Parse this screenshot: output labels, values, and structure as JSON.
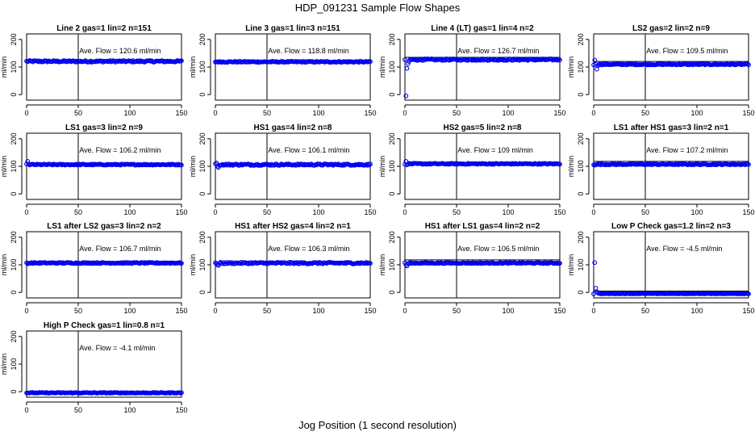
{
  "figure": {
    "title": "HDP_091231  Sample Flow Shapes",
    "xlabel": "Jog Position (1 second resolution)",
    "ylabel": "ml/min",
    "series_color": "#0000ee"
  },
  "chart_data": [
    {
      "type": "scatter",
      "title": "Line 2 gas=1 lin=2 n=151",
      "annotation": "Ave. Flow =  120.6  ml/min",
      "mean": 120.6,
      "first_points": [],
      "noise": 3,
      "xlim": [
        0,
        150
      ],
      "ylim": [
        -20,
        220
      ],
      "xticks": [
        0,
        50,
        100,
        150
      ],
      "yticks": [
        0,
        100,
        200
      ],
      "vline_x": 50,
      "hline_y": null
    },
    {
      "type": "scatter",
      "title": "Line 3 gas=1 lin=3 n=151",
      "annotation": "Ave. Flow =  118.8  ml/min",
      "mean": 118.8,
      "first_points": [],
      "noise": 2,
      "xlim": [
        0,
        150
      ],
      "ylim": [
        -20,
        220
      ],
      "xticks": [
        0,
        50,
        100,
        150
      ],
      "yticks": [
        0,
        100,
        200
      ],
      "vline_x": 50,
      "hline_y": null
    },
    {
      "type": "scatter",
      "title": "Line 4 (LT) gas=1 lin=4 n=2",
      "annotation": "Ave. Flow =  126.7  ml/min",
      "mean": 126.7,
      "first_points": [
        [
          1,
          -5
        ],
        [
          2,
          95
        ],
        [
          3,
          112
        ],
        [
          4,
          120
        ]
      ],
      "noise": 3,
      "xlim": [
        0,
        150
      ],
      "ylim": [
        -20,
        220
      ],
      "xticks": [
        0,
        50,
        100,
        150
      ],
      "yticks": [
        0,
        100,
        200
      ],
      "vline_x": 50,
      "hline_y": 135
    },
    {
      "type": "scatter",
      "title": "LS2 gas=2 lin=2 n=9",
      "annotation": "Ave. Flow =  109.5  ml/min",
      "mean": 109.5,
      "first_points": [
        [
          1,
          125
        ],
        [
          2,
          110
        ],
        [
          3,
          92
        ],
        [
          4,
          105
        ]
      ],
      "noise": 2,
      "xlim": [
        0,
        150
      ],
      "ylim": [
        -20,
        220
      ],
      "xticks": [
        0,
        50,
        100,
        150
      ],
      "yticks": [
        0,
        100,
        200
      ],
      "vline_x": 50,
      "hline_y": 120
    },
    {
      "type": "scatter",
      "title": "LS1 gas=3 lin=2 n=9",
      "annotation": "Ave. Flow =  106.2  ml/min",
      "mean": 106.2,
      "first_points": [
        [
          1,
          118
        ],
        [
          2,
          108
        ]
      ],
      "noise": 2,
      "xlim": [
        0,
        150
      ],
      "ylim": [
        -20,
        220
      ],
      "xticks": [
        0,
        50,
        100,
        150
      ],
      "yticks": [
        0,
        100,
        200
      ],
      "vline_x": 50,
      "hline_y": null
    },
    {
      "type": "scatter",
      "title": "HS1 gas=4 lin=2 n=8",
      "annotation": "Ave. Flow =  106.1  ml/min",
      "mean": 106.1,
      "first_points": [
        [
          1,
          112
        ],
        [
          2,
          100
        ],
        [
          3,
          96
        ],
        [
          4,
          104
        ]
      ],
      "noise": 3,
      "xlim": [
        0,
        150
      ],
      "ylim": [
        -20,
        220
      ],
      "xticks": [
        0,
        50,
        100,
        150
      ],
      "yticks": [
        0,
        100,
        200
      ],
      "vline_x": 50,
      "hline_y": null
    },
    {
      "type": "scatter",
      "title": "HS2 gas=5 lin=2 n=8",
      "annotation": "Ave. Flow =  109  ml/min",
      "mean": 109,
      "first_points": [
        [
          1,
          118
        ],
        [
          2,
          105
        ]
      ],
      "noise": 2,
      "xlim": [
        0,
        150
      ],
      "ylim": [
        -20,
        220
      ],
      "xticks": [
        0,
        50,
        100,
        150
      ],
      "yticks": [
        0,
        100,
        200
      ],
      "vline_x": 50,
      "hline_y": null
    },
    {
      "type": "scatter",
      "title": "LS1 after HS1 gas=3 lin=2 n=1",
      "annotation": "Ave. Flow =  107.2  ml/min",
      "mean": 107.2,
      "first_points": [
        [
          1,
          104
        ],
        [
          2,
          106
        ]
      ],
      "noise": 2,
      "xlim": [
        0,
        150
      ],
      "ylim": [
        -20,
        220
      ],
      "xticks": [
        0,
        50,
        100,
        150
      ],
      "yticks": [
        0,
        100,
        200
      ],
      "vline_x": 50,
      "hline_y": 118
    },
    {
      "type": "scatter",
      "title": "LS1 after LS2 gas=3 lin=2 n=2",
      "annotation": "Ave. Flow =  106.7  ml/min",
      "mean": 106.7,
      "first_points": [
        [
          1,
          104
        ]
      ],
      "noise": 2,
      "xlim": [
        0,
        150
      ],
      "ylim": [
        -20,
        220
      ],
      "xticks": [
        0,
        50,
        100,
        150
      ],
      "yticks": [
        0,
        100,
        200
      ],
      "vline_x": 50,
      "hline_y": null
    },
    {
      "type": "scatter",
      "title": "HS1 after HS2 gas=4 lin=2 n=1",
      "annotation": "Ave. Flow =  106.3  ml/min",
      "mean": 106.3,
      "first_points": [
        [
          1,
          104
        ],
        [
          2,
          100
        ],
        [
          3,
          98
        ]
      ],
      "noise": 3,
      "xlim": [
        0,
        150
      ],
      "ylim": [
        -20,
        220
      ],
      "xticks": [
        0,
        50,
        100,
        150
      ],
      "yticks": [
        0,
        100,
        200
      ],
      "vline_x": 50,
      "hline_y": null
    },
    {
      "type": "scatter",
      "title": "HS1 after LS1 gas=4 lin=2 n=2",
      "annotation": "Ave. Flow =  106.5  ml/min",
      "mean": 106.5,
      "first_points": [
        [
          1,
          100
        ],
        [
          2,
          96
        ],
        [
          3,
          104
        ]
      ],
      "noise": 2,
      "xlim": [
        0,
        150
      ],
      "ylim": [
        -20,
        220
      ],
      "xticks": [
        0,
        50,
        100,
        150
      ],
      "yticks": [
        0,
        100,
        200
      ],
      "vline_x": 50,
      "hline_y": 118
    },
    {
      "type": "scatter",
      "title": "Low P Check gas=1.2 lin=2 n=3",
      "annotation": "Ave. Flow =  -4.5  ml/min",
      "mean": -4.5,
      "first_points": [
        [
          1,
          108
        ],
        [
          2,
          15
        ],
        [
          3,
          2
        ],
        [
          4,
          -1
        ]
      ],
      "noise": 1,
      "xlim": [
        0,
        150
      ],
      "ylim": [
        -20,
        220
      ],
      "xticks": [
        0,
        50,
        100,
        150
      ],
      "yticks": [
        0,
        100,
        200
      ],
      "vline_x": 50,
      "hline_y": 5
    },
    {
      "type": "scatter",
      "title": "High P Check gas=1 lin=0.8 n=1",
      "annotation": "Ave. Flow =  -4.1  ml/min",
      "mean": -4.1,
      "first_points": [],
      "noise": 1.5,
      "xlim": [
        0,
        150
      ],
      "ylim": [
        -20,
        220
      ],
      "xticks": [
        0,
        50,
        100,
        150
      ],
      "yticks": [
        0,
        100,
        200
      ],
      "vline_x": 50,
      "hline_y": null
    }
  ]
}
